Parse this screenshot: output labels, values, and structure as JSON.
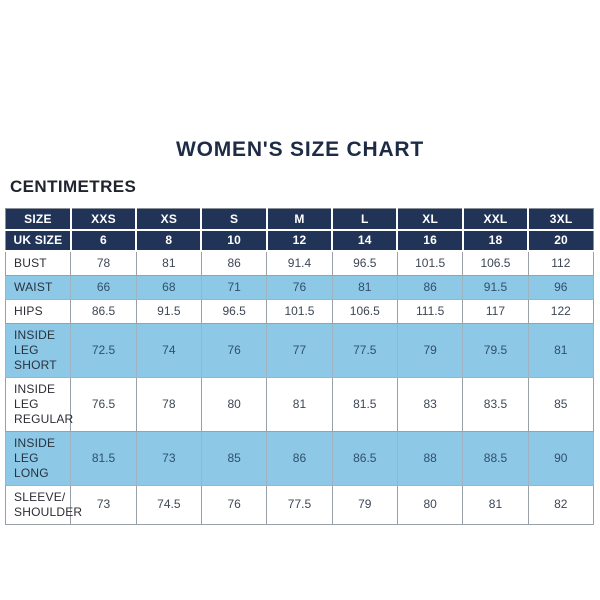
{
  "title": "WOMEN'S SIZE CHART",
  "units_heading": "CENTIMETRES",
  "colors": {
    "header_navy": "#213457",
    "row_light_blue": "#8dc8e7",
    "header_text": "#ffffff",
    "body_text": "#3d4754",
    "border_gray": "#9aa0a8"
  },
  "chart_data": {
    "type": "table",
    "title": "WOMEN'S SIZE CHART",
    "units": "CENTIMETRES",
    "header_rows": [
      {
        "label": "SIZE",
        "values": [
          "XXS",
          "XS",
          "S",
          "M",
          "L",
          "XL",
          "XXL",
          "3XL"
        ]
      },
      {
        "label": "UK SIZE",
        "values": [
          "6",
          "8",
          "10",
          "12",
          "14",
          "16",
          "18",
          "20"
        ]
      }
    ],
    "rows": [
      {
        "label": "BUST",
        "values": [
          "78",
          "81",
          "86",
          "91.4",
          "96.5",
          "101.5",
          "106.5",
          "112"
        ]
      },
      {
        "label": "WAIST",
        "values": [
          "66",
          "68",
          "71",
          "76",
          "81",
          "86",
          "91.5",
          "96"
        ]
      },
      {
        "label": "HIPS",
        "values": [
          "86.5",
          "91.5",
          "96.5",
          "101.5",
          "106.5",
          "111.5",
          "117",
          "122"
        ]
      },
      {
        "label": "INSIDE LEG SHORT",
        "values": [
          "72.5",
          "74",
          "76",
          "77",
          "77.5",
          "79",
          "79.5",
          "81"
        ]
      },
      {
        "label": "INSIDE LEG REGULAR",
        "values": [
          "76.5",
          "78",
          "80",
          "81",
          "81.5",
          "83",
          "83.5",
          "85"
        ]
      },
      {
        "label": "INSIDE LEG LONG",
        "values": [
          "81.5",
          "73",
          "85",
          "86",
          "86.5",
          "88",
          "88.5",
          "90"
        ]
      },
      {
        "label": "SLEEVE/ SHOULDER",
        "values": [
          "73",
          "74.5",
          "76",
          "77.5",
          "79",
          "80",
          "81",
          "82"
        ]
      }
    ]
  }
}
